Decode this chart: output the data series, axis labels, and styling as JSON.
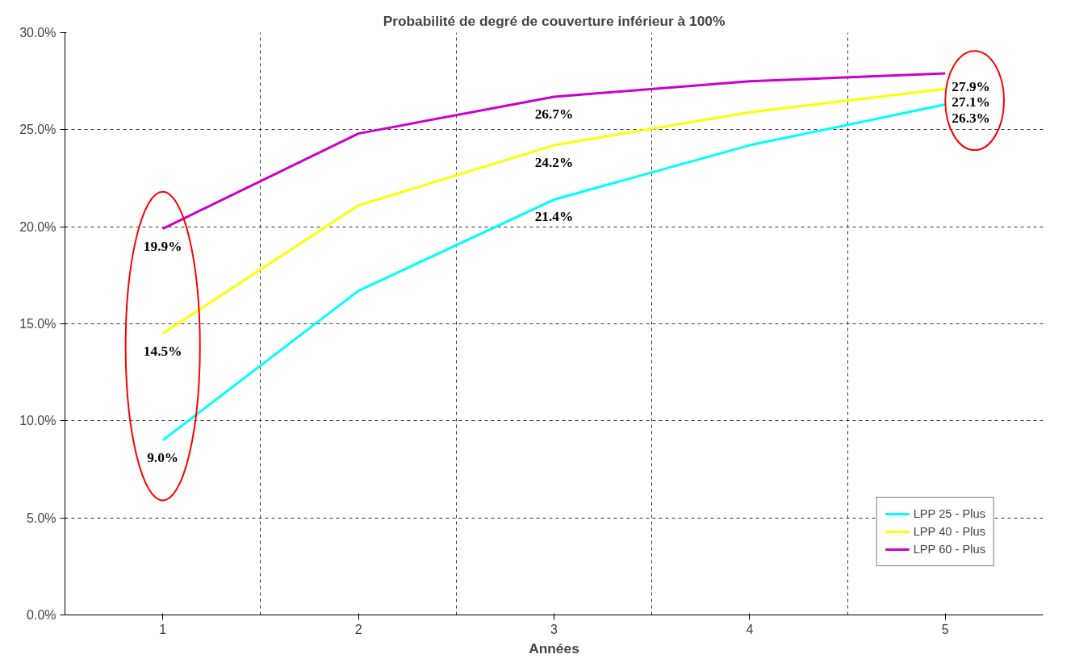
{
  "chart_data": {
    "type": "line",
    "title": "Probabilité de degré de couverture inférieur à 100%",
    "xlabel": "Années",
    "categories": [
      "1",
      "2",
      "3",
      "4",
      "5"
    ],
    "series": [
      {
        "name": "LPP 25 - Plus",
        "color": "#00ffff",
        "values": [
          9.0,
          16.7,
          21.4,
          24.2,
          26.3
        ],
        "value_labels": [
          "9.0%",
          null,
          "21.4%",
          null,
          "26.3%"
        ]
      },
      {
        "name": "LPP 40 - Plus",
        "color": "#ffff00",
        "values": [
          14.5,
          21.1,
          24.2,
          25.9,
          27.1
        ],
        "value_labels": [
          "14.5%",
          null,
          "24.2%",
          null,
          "27.1%"
        ]
      },
      {
        "name": "LPP 60 - Plus",
        "color": "#cc00cc",
        "values": [
          19.9,
          24.8,
          26.7,
          27.5,
          27.9
        ],
        "value_labels": [
          "19.9%",
          null,
          "26.7%",
          null,
          "27.9%"
        ]
      }
    ],
    "ylim": [
      0,
      30
    ],
    "yticks": [
      {
        "value": 0,
        "label": "0.0%"
      },
      {
        "value": 5,
        "label": "5.0%"
      },
      {
        "value": 10,
        "label": "10.0%"
      },
      {
        "value": 15,
        "label": "15.0%"
      },
      {
        "value": 20,
        "label": "20.0%"
      },
      {
        "value": 25,
        "label": "25.0%"
      },
      {
        "value": 30,
        "label": "30.0%"
      }
    ],
    "grid": true,
    "legend": "bottom right",
    "marker": "none",
    "line_style": "solid"
  }
}
